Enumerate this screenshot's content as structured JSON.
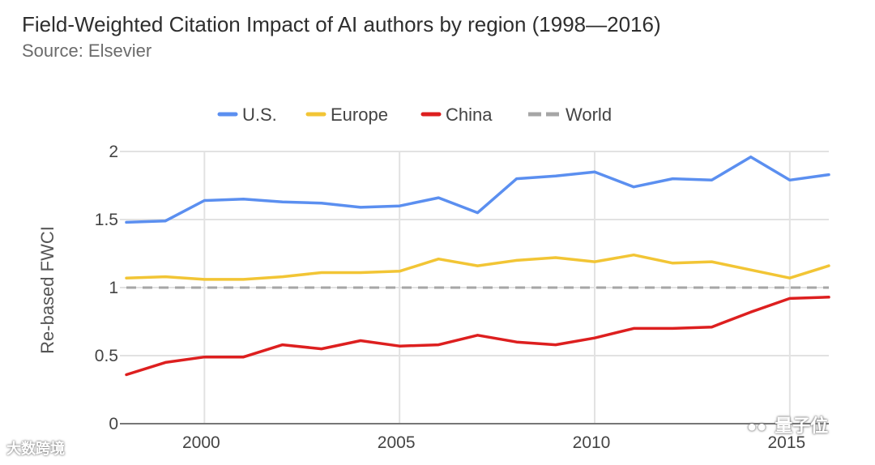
{
  "chart_data": {
    "type": "line",
    "title": "Field-Weighted Citation Impact of AI authors by region (1998—2016)",
    "subtitle": "Source: Elsevier",
    "xlabel": "",
    "ylabel": "Re-based FWCI",
    "x": [
      1998,
      1999,
      2000,
      2001,
      2002,
      2003,
      2004,
      2005,
      2006,
      2007,
      2008,
      2009,
      2010,
      2011,
      2012,
      2013,
      2014,
      2015,
      2016
    ],
    "xlim": [
      1998,
      2016
    ],
    "ylim": [
      0,
      2
    ],
    "x_ticks": [
      2000,
      2005,
      2010,
      2015
    ],
    "x_tick_labels": [
      "2000",
      "2005",
      "2010",
      "2015"
    ],
    "y_ticks": [
      0,
      0.5,
      1,
      1.5,
      2
    ],
    "y_tick_labels": [
      "0",
      "0.5",
      "1",
      "1.5",
      "2"
    ],
    "grid": true,
    "legend_position": "top-center",
    "series": [
      {
        "name": "U.S.",
        "color": "#5b8ff0",
        "dashed": false,
        "values": [
          1.48,
          1.49,
          1.64,
          1.65,
          1.63,
          1.62,
          1.59,
          1.6,
          1.66,
          1.55,
          1.8,
          1.82,
          1.85,
          1.74,
          1.8,
          1.79,
          1.96,
          1.79,
          1.83
        ]
      },
      {
        "name": "Europe",
        "color": "#f2c535",
        "dashed": false,
        "values": [
          1.07,
          1.08,
          1.06,
          1.06,
          1.08,
          1.11,
          1.11,
          1.12,
          1.21,
          1.16,
          1.2,
          1.22,
          1.19,
          1.24,
          1.18,
          1.19,
          1.13,
          1.07,
          1.16
        ]
      },
      {
        "name": "China",
        "color": "#dd1f1f",
        "dashed": false,
        "values": [
          0.36,
          0.45,
          0.49,
          0.49,
          0.58,
          0.55,
          0.61,
          0.57,
          0.58,
          0.65,
          0.6,
          0.58,
          0.63,
          0.7,
          0.7,
          0.71,
          0.82,
          0.92,
          0.93
        ]
      },
      {
        "name": "World",
        "color": "#a6a6a6",
        "dashed": true,
        "values": [
          1,
          1,
          1,
          1,
          1,
          1,
          1,
          1,
          1,
          1,
          1,
          1,
          1,
          1,
          1,
          1,
          1,
          1,
          1
        ]
      }
    ]
  },
  "watermarks": {
    "left": "大数跨境",
    "right": "量子位"
  }
}
